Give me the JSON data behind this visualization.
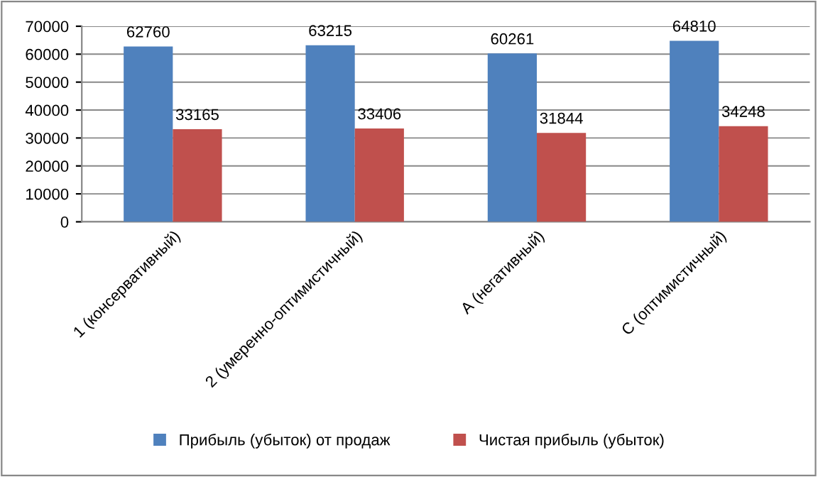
{
  "chart_data": {
    "type": "bar",
    "categories": [
      "1 (консервативный)",
      "2 (умеренно-оптимистичный)",
      "А (негативный)",
      "С (оптимистичный)"
    ],
    "series": [
      {
        "name": "Прибыль (убыток) от продаж",
        "color": "#4f81bd",
        "values": [
          62760,
          63215,
          60261,
          64810
        ]
      },
      {
        "name": "Чистая прибыль (убыток)",
        "color": "#c0504d",
        "values": [
          33165,
          33406,
          31844,
          34248
        ]
      }
    ],
    "ylim": [
      0,
      70000
    ],
    "yticks": [
      0,
      10000,
      20000,
      30000,
      40000,
      50000,
      60000,
      70000
    ],
    "grid": "y",
    "legend": "bottom",
    "data_labels": true
  }
}
